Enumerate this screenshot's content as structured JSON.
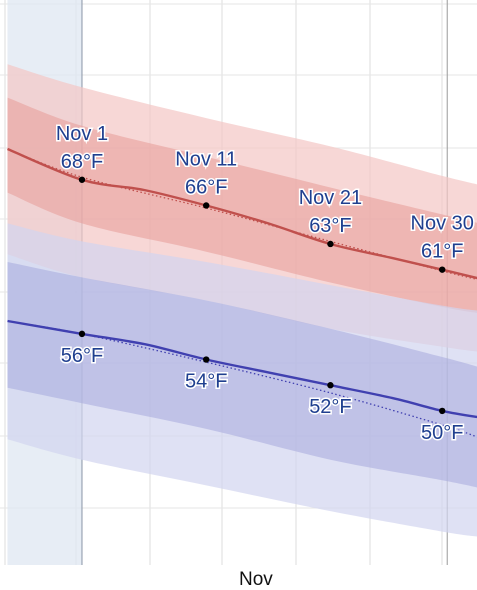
{
  "chart_data": {
    "type": "line",
    "x_unit": "date",
    "x_tick_labels": [
      {
        "date": "Nov 15",
        "label": "Nov"
      }
    ],
    "highlight_range": [
      "Oct 26",
      "Nov 1"
    ],
    "series": [
      {
        "key": "high",
        "color": "#c0504d",
        "band_inner_color": "#e79b98",
        "band_outer_color": "#f4c6c4",
        "points": [
          {
            "date": "Oct 26",
            "value": 70.4
          },
          {
            "date": "Nov 1",
            "value": 68
          },
          {
            "date": "Nov 6",
            "value": 67.2
          },
          {
            "date": "Nov 11",
            "value": 66
          },
          {
            "date": "Nov 16",
            "value": 64.6
          },
          {
            "date": "Nov 21",
            "value": 63
          },
          {
            "date": "Nov 26",
            "value": 61.9
          },
          {
            "date": "Nov 30",
            "value": 61
          },
          {
            "date": "Dec 3",
            "value": 60.3
          }
        ],
        "normal": [
          {
            "date": "Oct 26",
            "value": 70.4
          },
          {
            "date": "Nov 1",
            "value": 68.2
          },
          {
            "date": "Nov 11",
            "value": 65.8
          },
          {
            "date": "Nov 21",
            "value": 63.2
          },
          {
            "date": "Nov 30",
            "value": 60.9
          },
          {
            "date": "Dec 3",
            "value": 60.2
          }
        ],
        "band_inner": [
          {
            "date": "Oct 26",
            "low": 67.0,
            "high": 74.4
          },
          {
            "date": "Nov 1",
            "low": 64.6,
            "high": 72.2
          },
          {
            "date": "Nov 11",
            "low": 62.4,
            "high": 69.8
          },
          {
            "date": "Nov 21",
            "low": 60.0,
            "high": 67.4
          },
          {
            "date": "Nov 30",
            "low": 58.1,
            "high": 65.3
          },
          {
            "date": "Dec 3",
            "low": 57.6,
            "high": 64.6
          }
        ],
        "band_outer": [
          {
            "date": "Oct 26",
            "low": 62.2,
            "high": 77.0
          },
          {
            "date": "Nov 1",
            "low": 60.4,
            "high": 75.2
          },
          {
            "date": "Nov 11",
            "low": 58.6,
            "high": 72.8
          },
          {
            "date": "Nov 21",
            "low": 56.4,
            "high": 70.6
          },
          {
            "date": "Nov 30",
            "low": 55.0,
            "high": 68.3
          },
          {
            "date": "Dec 3",
            "low": 54.6,
            "high": 67.6
          }
        ],
        "annotations": [
          {
            "date": "Nov 1",
            "date_label": "Nov 1",
            "value_label": "68°F",
            "value": 68
          },
          {
            "date": "Nov 11",
            "date_label": "Nov 11",
            "value_label": "66°F",
            "value": 66
          },
          {
            "date": "Nov 21",
            "date_label": "Nov 21",
            "value_label": "63°F",
            "value": 63
          },
          {
            "date": "Nov 30",
            "date_label": "Nov 30",
            "value_label": "61°F",
            "value": 61
          }
        ]
      },
      {
        "key": "low",
        "color": "#4040b0",
        "band_inner_color": "#a6a9dd",
        "band_outer_color": "#d2d4ef",
        "points": [
          {
            "date": "Oct 26",
            "value": 57.0
          },
          {
            "date": "Nov 1",
            "value": 56
          },
          {
            "date": "Nov 6",
            "value": 55.2
          },
          {
            "date": "Nov 11",
            "value": 54
          },
          {
            "date": "Nov 16",
            "value": 53.0
          },
          {
            "date": "Nov 21",
            "value": 52
          },
          {
            "date": "Nov 26",
            "value": 51.0
          },
          {
            "date": "Nov 30",
            "value": 50
          },
          {
            "date": "Dec 3",
            "value": 49.5
          }
        ],
        "normal": [
          {
            "date": "Oct 26",
            "value": 57.0
          },
          {
            "date": "Nov 1",
            "value": 56.0
          },
          {
            "date": "Nov 11",
            "value": 53.8
          },
          {
            "date": "Nov 21",
            "value": 51.4
          },
          {
            "date": "Nov 30",
            "value": 48.9
          },
          {
            "date": "Dec 3",
            "value": 47.9
          }
        ],
        "band_inner": [
          {
            "date": "Oct 26",
            "low": 51.8,
            "high": 61.6
          },
          {
            "date": "Nov 1",
            "low": 50.6,
            "high": 60.4
          },
          {
            "date": "Nov 11",
            "low": 48.6,
            "high": 58.6
          },
          {
            "date": "Nov 21",
            "low": 46.2,
            "high": 56.4
          },
          {
            "date": "Nov 30",
            "low": 44.6,
            "high": 54.2
          },
          {
            "date": "Dec 3",
            "low": 44.0,
            "high": 53.4
          }
        ],
        "band_outer": [
          {
            "date": "Oct 26",
            "low": 47.8,
            "high": 64.6
          },
          {
            "date": "Nov 1",
            "low": 46.2,
            "high": 63.2
          },
          {
            "date": "Nov 11",
            "low": 44.2,
            "high": 61.6
          },
          {
            "date": "Nov 21",
            "low": 42.2,
            "high": 59.8
          },
          {
            "date": "Nov 30",
            "low": 40.6,
            "high": 58.2
          },
          {
            "date": "Dec 3",
            "low": 40.2,
            "high": 57.8
          }
        ],
        "annotations": [
          {
            "date": "Nov 1",
            "value_label": "56°F",
            "value": 56
          },
          {
            "date": "Nov 11",
            "value_label": "54°F",
            "value": 54
          },
          {
            "date": "Nov 21",
            "value_label": "52°F",
            "value": 52
          },
          {
            "date": "Nov 30",
            "value_label": "50°F",
            "value": 50
          }
        ]
      }
    ],
    "ylim": [
      38,
      82
    ],
    "grid": true,
    "legend": "none"
  }
}
